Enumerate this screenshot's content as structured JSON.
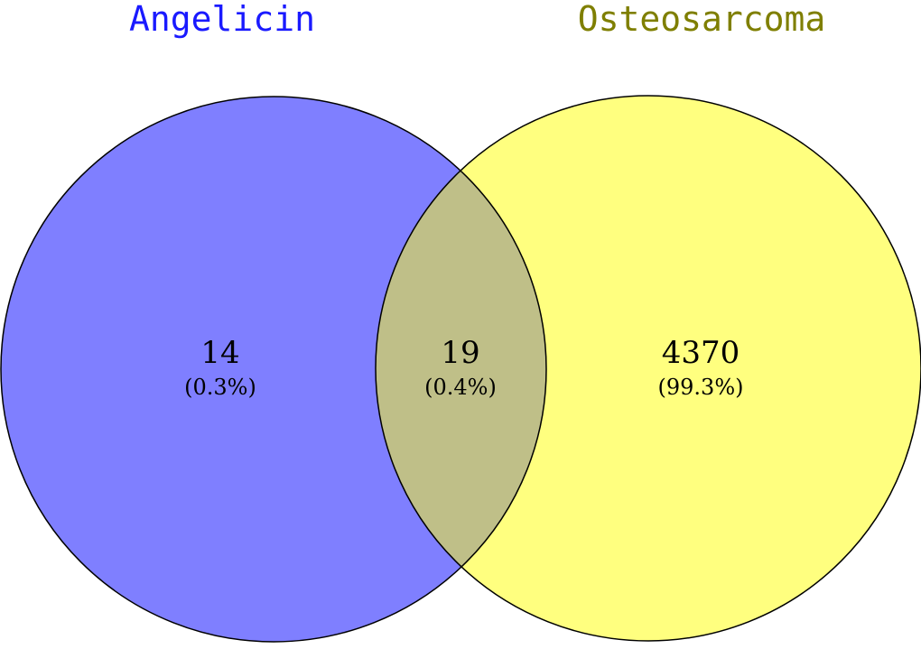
{
  "sets": [
    {
      "name": "Angelicin",
      "color": "#7f7fff",
      "label_color": "#1a1aff"
    },
    {
      "name": "Osteosarcoma",
      "color": "#ffff7f",
      "label_color": "#7f7f00"
    }
  ],
  "overlap_color": "#bfbf88",
  "outline_color": "#000000",
  "regions": [
    {
      "id": "angelicin-only",
      "count": "14",
      "percent": "(0.3%)"
    },
    {
      "id": "intersection",
      "count": "19",
      "percent": "(0.4%)"
    },
    {
      "id": "osteosarcoma-only",
      "count": "4370",
      "percent": "(99.3%)"
    }
  ]
}
